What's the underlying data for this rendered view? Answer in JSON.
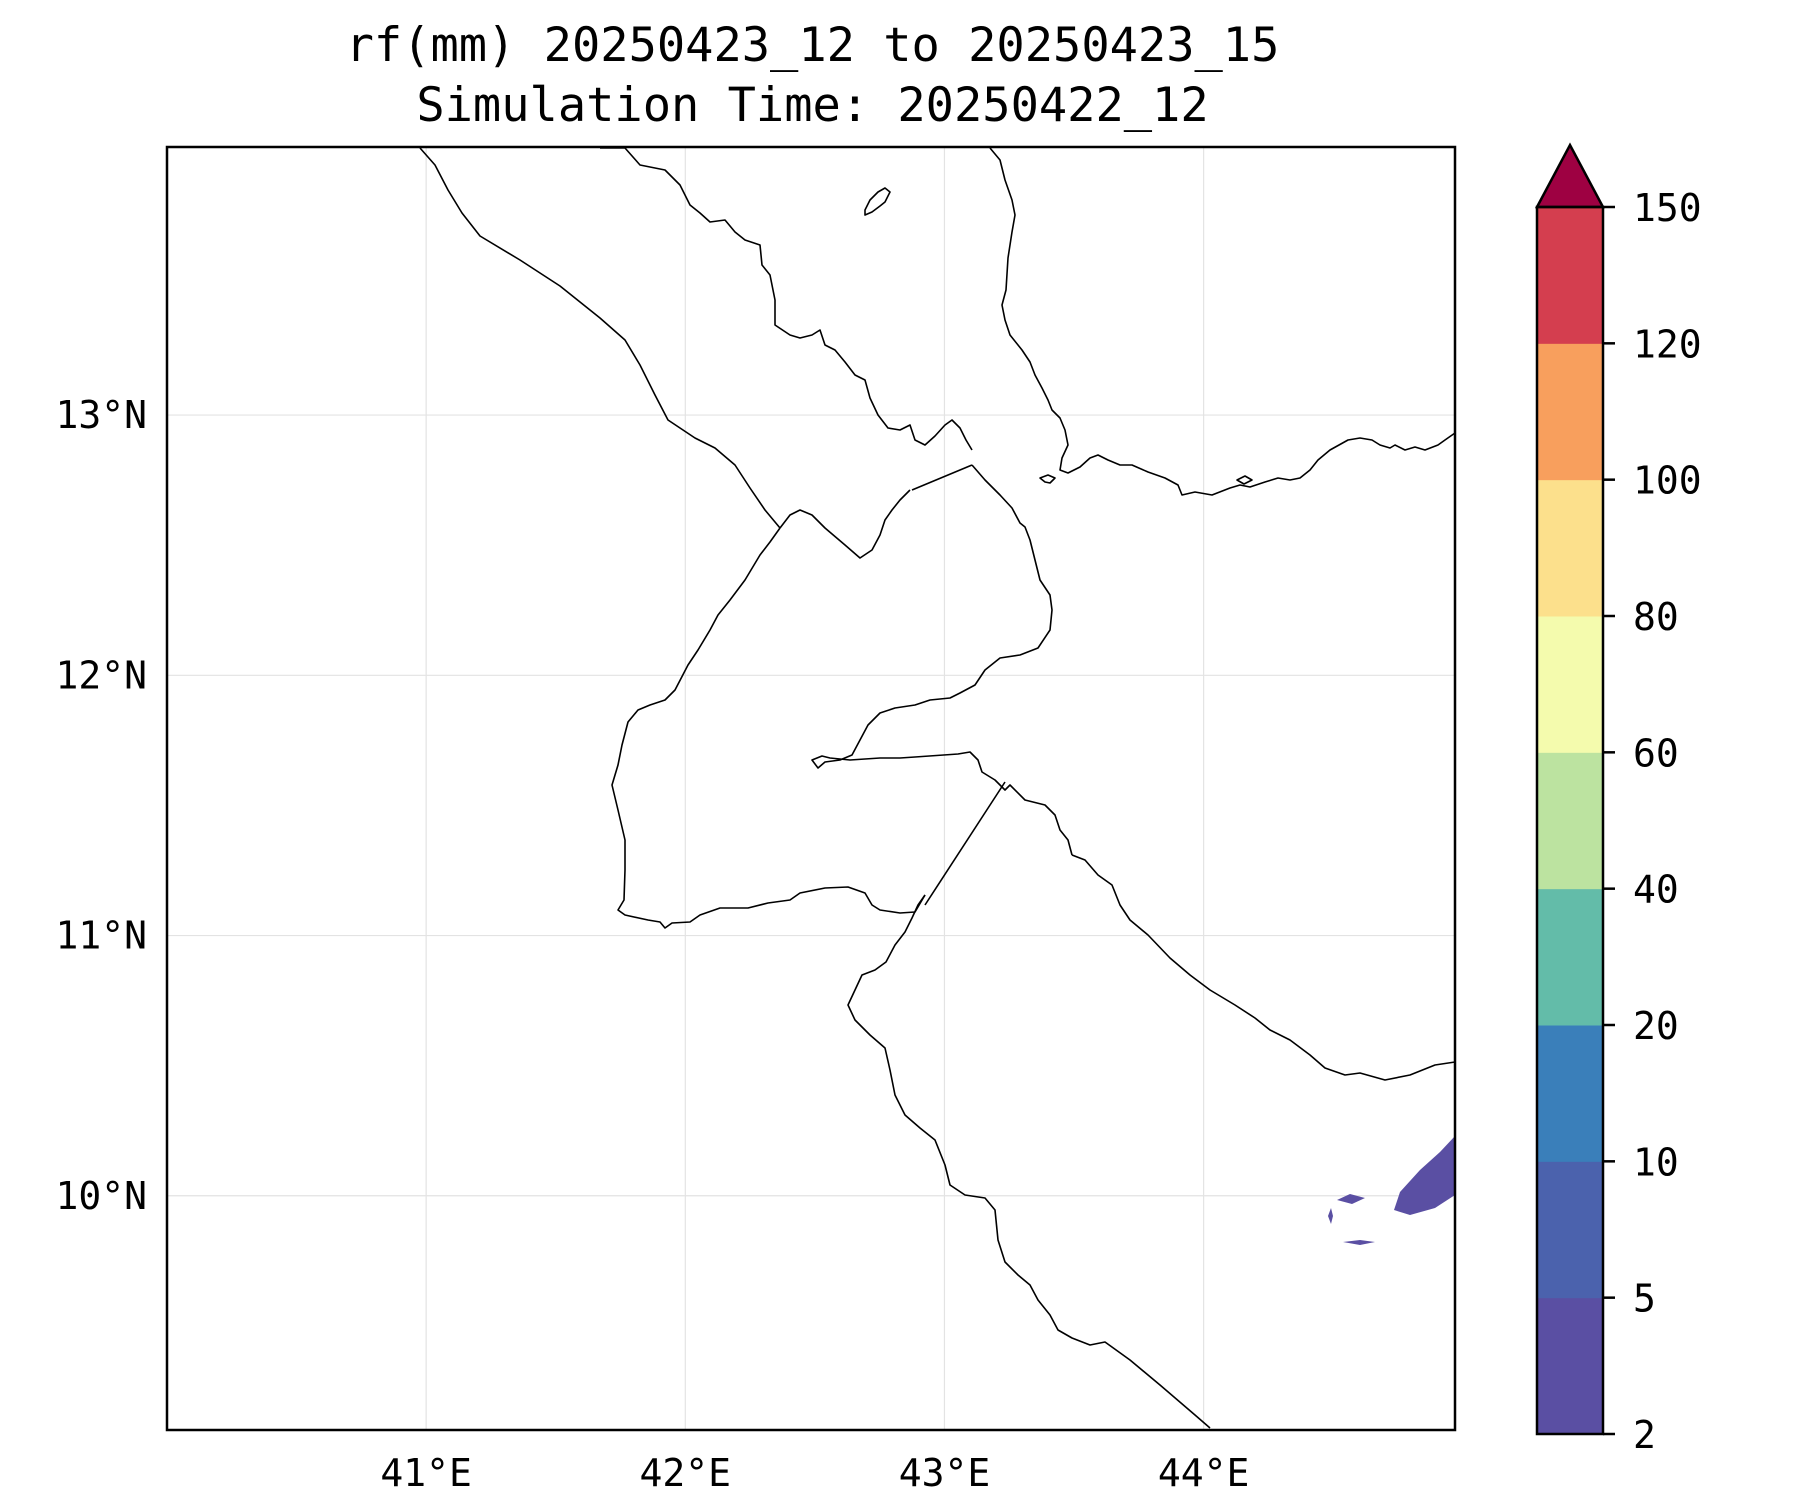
{
  "title": {
    "line1": "rf(mm) 20250423_12 to 20250423_15",
    "line2": "Simulation Time: 20250422_12"
  },
  "map": {
    "lon_range": [
      40.0,
      44.97
    ],
    "lat_range": [
      9.1,
      14.03
    ],
    "lon_ticks": [
      {
        "value": 41,
        "label": "41°E"
      },
      {
        "value": 42,
        "label": "42°E"
      },
      {
        "value": 43,
        "label": "43°E"
      },
      {
        "value": 44,
        "label": "44°E"
      }
    ],
    "lat_ticks": [
      {
        "value": 13,
        "label": "13°N"
      },
      {
        "value": 12,
        "label": "12°N"
      },
      {
        "value": 11,
        "label": "11°N"
      },
      {
        "value": 10,
        "label": "10°N"
      }
    ],
    "gridlines": true,
    "rainfall_patches": [
      {
        "lon": 44.68,
        "lat": 9.83,
        "class": "2-5"
      },
      {
        "lon": 44.59,
        "lat": 9.84,
        "class": "2-5"
      },
      {
        "lon": 44.4,
        "lat": 9.76,
        "class": "2-5"
      }
    ]
  },
  "colorbar": {
    "levels": [
      2,
      5,
      10,
      20,
      40,
      60,
      80,
      100,
      120,
      150
    ],
    "colors": [
      "#5a4fa3",
      "#4b62ad",
      "#3a7fba",
      "#63bca9",
      "#bce3a0",
      "#f4fbad",
      "#fce08c",
      "#f89f5d",
      "#d43e4f",
      "#9e0142"
    ],
    "extend": "max"
  }
}
